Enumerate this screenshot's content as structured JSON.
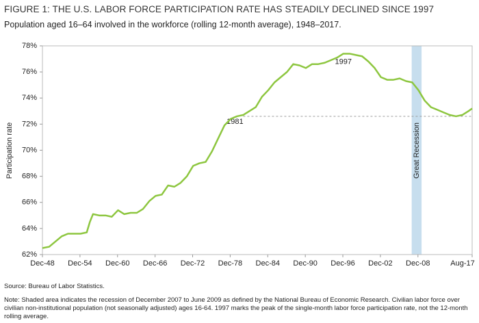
{
  "chart_data": {
    "type": "line",
    "title": "FIGURE 1: THE U.S. LABOR FORCE PARTICIPATION RATE HAS STEADILY DECLINED SINCE 1997",
    "subtitle": "Population aged 16–64 involved in the workforce (rolling 12-month average), 1948–2017.",
    "y_label": "Participation rate",
    "source": "Source: Bureau of Labor Statistics.",
    "note": "Note: Shaded area indicates the recession of December 2007 to June 2009 as defined by the National Bureau of Economic Research. Civilian labor force over civilian non-institutional population (not seasonally adjusted) ages 16-64. 1997 marks the peak of the single-month labor force participation rate, not the 12-month rolling average.",
    "x": [
      1948.92,
      1950,
      1951,
      1952,
      1953,
      1954,
      1955,
      1956,
      1956.5,
      1957,
      1958,
      1959,
      1960,
      1961,
      1962,
      1963,
      1964,
      1965,
      1966,
      1967,
      1968,
      1969,
      1970,
      1971,
      1972,
      1973,
      1974,
      1975,
      1976,
      1977,
      1978,
      1979,
      1980,
      1981,
      1982,
      1983,
      1984,
      1985,
      1986,
      1987,
      1988,
      1989,
      1990,
      1991,
      1992,
      1993,
      1994,
      1995,
      1996,
      1997,
      1998,
      1999,
      2000,
      2001,
      2002,
      2003,
      2004,
      2005,
      2006,
      2007,
      2008,
      2009,
      2010,
      2011,
      2012,
      2013,
      2014,
      2015,
      2016,
      2017,
      2017.58
    ],
    "series": [
      {
        "name": "Participation rate",
        "color": "#8dc63f",
        "values": [
          62.5,
          62.6,
          63.0,
          63.4,
          63.6,
          63.6,
          63.6,
          63.7,
          64.5,
          65.1,
          65.0,
          65.0,
          64.9,
          65.4,
          65.1,
          65.2,
          65.2,
          65.5,
          66.1,
          66.5,
          66.6,
          67.3,
          67.2,
          67.5,
          68.0,
          68.8,
          69.0,
          69.1,
          69.9,
          70.9,
          71.9,
          72.4,
          72.6,
          72.7,
          73.0,
          73.3,
          74.1,
          74.6,
          75.2,
          75.6,
          76.0,
          76.6,
          76.5,
          76.3,
          76.6,
          76.6,
          76.7,
          76.9,
          77.1,
          77.4,
          77.4,
          77.3,
          77.2,
          76.8,
          76.3,
          75.6,
          75.4,
          75.4,
          75.5,
          75.3,
          75.2,
          74.6,
          73.8,
          73.3,
          73.1,
          72.9,
          72.7,
          72.6,
          72.7,
          73.0,
          73.2
        ]
      }
    ],
    "xlim": [
      1948.92,
      2017.58
    ],
    "xticks": [
      {
        "value": 1948.92,
        "label": "Dec-48"
      },
      {
        "value": 1954.92,
        "label": "Dec-54"
      },
      {
        "value": 1960.92,
        "label": "Dec-60"
      },
      {
        "value": 1966.92,
        "label": "Dec-66"
      },
      {
        "value": 1972.92,
        "label": "Dec-72"
      },
      {
        "value": 1978.92,
        "label": "Dec-78"
      },
      {
        "value": 1984.92,
        "label": "Dec-84"
      },
      {
        "value": 1990.92,
        "label": "Dec-90"
      },
      {
        "value": 1996.92,
        "label": "Dec-96"
      },
      {
        "value": 2002.92,
        "label": "Dec-02"
      },
      {
        "value": 2008.92,
        "label": "Dec-08"
      },
      {
        "value": 2017.58,
        "label": "Aug-17"
      }
    ],
    "ylim": [
      62,
      78
    ],
    "yticks": [
      {
        "value": 62,
        "label": "62%"
      },
      {
        "value": 64,
        "label": "64%"
      },
      {
        "value": 66,
        "label": "66%"
      },
      {
        "value": 68,
        "label": "68%"
      },
      {
        "value": 70,
        "label": "70%"
      },
      {
        "value": 72,
        "label": "72%"
      },
      {
        "value": 74,
        "label": "74%"
      },
      {
        "value": 76,
        "label": "76%"
      },
      {
        "value": 78,
        "label": "78%"
      }
    ],
    "grid": false,
    "recession": {
      "label": "Great Recession",
      "x": [
        2007.92,
        2009.5
      ],
      "color": "#c7deee"
    },
    "reference_line": {
      "label": "1981",
      "value": 72.6,
      "x": [
        1981,
        2017.58
      ]
    },
    "peak_label": {
      "label": "1997",
      "x": 1997,
      "value": 77.4
    }
  }
}
